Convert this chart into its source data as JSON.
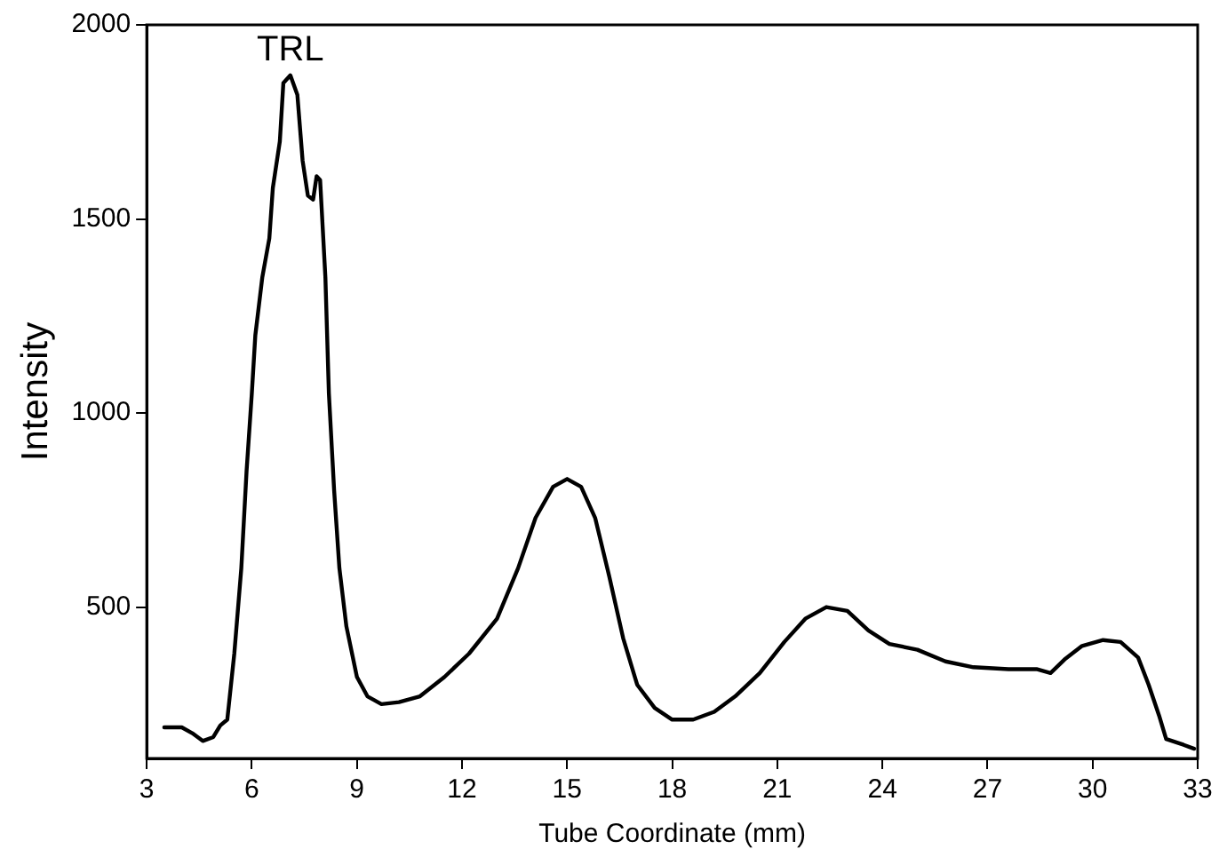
{
  "chart_data": {
    "type": "line",
    "xlabel": "Tube Coordinate (mm)",
    "ylabel": "Intensity",
    "annotations": [
      "TRL"
    ],
    "xlim": [
      3,
      33
    ],
    "xticks": [
      3,
      6,
      9,
      12,
      15,
      18,
      21,
      24,
      27,
      30,
      33
    ],
    "ylim": [
      110,
      2000
    ],
    "yticks": [
      500,
      1000,
      1500,
      2000
    ],
    "grid": false,
    "legend": false,
    "marker": "none",
    "line_style": "solid",
    "series": [
      {
        "color": "#000000",
        "x": [
          3.5,
          4.0,
          4.3,
          4.6,
          4.9,
          5.1,
          5.3,
          5.5,
          5.7,
          5.85,
          6.0,
          6.1,
          6.3,
          6.5,
          6.6,
          6.8,
          6.9,
          7.1,
          7.3,
          7.45,
          7.6,
          7.75,
          7.85,
          7.95,
          8.1,
          8.2,
          8.35,
          8.5,
          8.7,
          9.0,
          9.3,
          9.7,
          10.2,
          10.8,
          11.5,
          12.2,
          13.0,
          13.6,
          14.1,
          14.6,
          15.0,
          15.4,
          15.8,
          16.2,
          16.6,
          17.0,
          17.5,
          18.0,
          18.6,
          19.2,
          19.8,
          20.5,
          21.2,
          21.8,
          22.4,
          23.0,
          23.6,
          24.2,
          25.0,
          25.8,
          26.6,
          27.6,
          28.4,
          28.8,
          29.2,
          29.7,
          30.3,
          30.8,
          31.3,
          31.6,
          31.9,
          32.1,
          32.6,
          32.9
        ],
        "values": [
          190,
          190,
          175,
          155,
          165,
          195,
          210,
          380,
          600,
          850,
          1050,
          1200,
          1350,
          1450,
          1580,
          1700,
          1850,
          1870,
          1820,
          1650,
          1560,
          1550,
          1610,
          1600,
          1350,
          1050,
          800,
          600,
          450,
          320,
          270,
          250,
          255,
          270,
          320,
          380,
          470,
          600,
          730,
          810,
          830,
          810,
          730,
          580,
          420,
          300,
          240,
          210,
          210,
          230,
          270,
          330,
          410,
          470,
          500,
          490,
          440,
          405,
          390,
          360,
          345,
          340,
          340,
          330,
          365,
          400,
          415,
          410,
          370,
          300,
          220,
          160,
          145,
          135
        ]
      }
    ]
  }
}
